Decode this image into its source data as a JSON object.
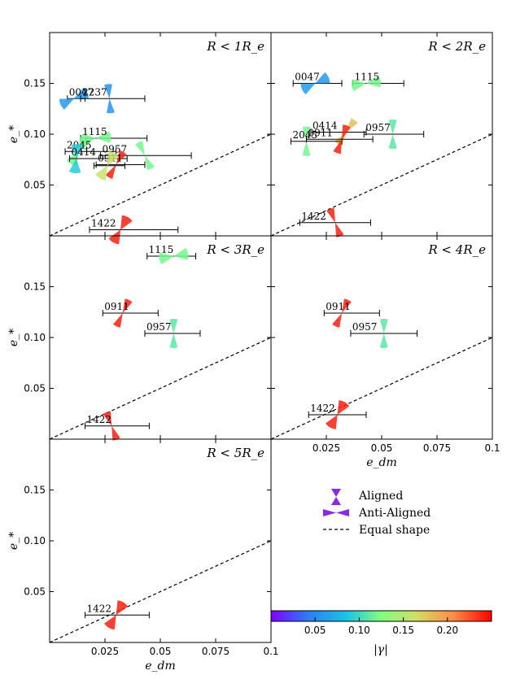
{
  "chart_data": {
    "type": "scatter",
    "description_axes": {
      "xlabel": "e_dm",
      "ylabel": "e_*"
    },
    "xlim": [
      0,
      0.1
    ],
    "ylim": [
      0,
      0.2
    ],
    "xticks": [
      0.025,
      0.05,
      0.075,
      0.1
    ],
    "xtick_labels": [
      "0.025",
      "0.05",
      "0.075",
      "0.1"
    ],
    "yticks": [
      0.05,
      0.1,
      0.15
    ],
    "ytick_labels": [
      "0.05",
      "0.10",
      "0.15"
    ],
    "xlabel": "e_dm",
    "ylabel": "e_*",
    "panels": [
      {
        "title": "R < 1R_e",
        "points": [
          {
            "label": "0047",
            "x": 0.011,
            "y": 0.135,
            "xerr": [
              0.008,
              0.016
            ],
            "gamma": 0.06,
            "angle": 25,
            "type": "anti"
          },
          {
            "label": "2237",
            "x": 0.027,
            "y": 0.135,
            "xerr": [
              0.014,
              0.043
            ],
            "gamma": 0.055,
            "angle": 5,
            "type": "aligned"
          },
          {
            "label": "1115",
            "x": 0.021,
            "y": 0.096,
            "xerr": [
              0.014,
              0.044
            ],
            "gamma": 0.12,
            "angle": 5,
            "type": "anti"
          },
          {
            "label": "2045",
            "x": 0.013,
            "y": 0.083,
            "xerr": [
              0.007,
              0.03
            ],
            "gamma": 0.12,
            "angle": 60,
            "type": "anti"
          },
          {
            "label": "0957",
            "x": 0.043,
            "y": 0.079,
            "xerr": [
              0.023,
              0.064
            ],
            "gamma": 0.12,
            "angle": 25,
            "type": "aligned"
          },
          {
            "label": "0414",
            "x": 0.012,
            "y": 0.076,
            "xerr": [
              0.009,
              0.035
            ],
            "gamma": 0.09,
            "angle": 85,
            "type": "anti"
          },
          {
            "label": "0911",
            "x": 0.03,
            "y": 0.07,
            "xerr": [
              0.021,
              0.043
            ],
            "gamma": 0.24,
            "angle": -30,
            "type": "aligned"
          },
          {
            "label": "0911b",
            "x": 0.026,
            "y": 0.069,
            "xerr": [
              0.02,
              0.034
            ],
            "gamma": 0.16,
            "angle": 60,
            "type": "anti"
          },
          {
            "label": "1422",
            "x": 0.032,
            "y": 0.006,
            "xerr": [
              0.018,
              0.058
            ],
            "gamma": 0.24,
            "angle": 60,
            "type": "anti"
          }
        ]
      },
      {
        "title": "R < 2R_e",
        "points": [
          {
            "label": "0047",
            "x": 0.02,
            "y": 0.15,
            "xerr": [
              0.01,
              0.032
            ],
            "gamma": 0.06,
            "angle": 25,
            "type": "anti"
          },
          {
            "label": "1115",
            "x": 0.043,
            "y": 0.15,
            "xerr": [
              0.037,
              0.06
            ],
            "gamma": 0.12,
            "angle": 8,
            "type": "anti"
          },
          {
            "label": "0414",
            "x": 0.034,
            "y": 0.102,
            "xerr": [
              0.018,
              0.043
            ],
            "gamma": 0.18,
            "angle": -35,
            "type": "aligned"
          },
          {
            "label": "2045",
            "x": 0.016,
            "y": 0.093,
            "xerr": [
              0.009,
              0.032
            ],
            "gamma": 0.12,
            "angle": 0,
            "type": "aligned"
          },
          {
            "label": "0957",
            "x": 0.055,
            "y": 0.1,
            "xerr": [
              0.042,
              0.069
            ],
            "gamma": 0.11,
            "angle": 0,
            "type": "aligned"
          },
          {
            "label": "0911",
            "x": 0.032,
            "y": 0.095,
            "xerr": [
              0.016,
              0.046
            ],
            "gamma": 0.24,
            "angle": -20,
            "type": "aligned"
          },
          {
            "label": "1422",
            "x": 0.029,
            "y": 0.013,
            "xerr": [
              0.013,
              0.045
            ],
            "gamma": 0.24,
            "angle": 20,
            "type": "aligned"
          }
        ]
      },
      {
        "title": "R < 3R_e",
        "points": [
          {
            "label": "1115",
            "x": 0.056,
            "y": 0.18,
            "xerr": [
              0.044,
              0.066
            ],
            "gamma": 0.12,
            "angle": 10,
            "type": "anti"
          },
          {
            "label": "0911",
            "x": 0.033,
            "y": 0.124,
            "xerr": [
              0.024,
              0.049
            ],
            "gamma": 0.24,
            "angle": -25,
            "type": "aligned"
          },
          {
            "label": "0957",
            "x": 0.056,
            "y": 0.104,
            "xerr": [
              0.043,
              0.068
            ],
            "gamma": 0.11,
            "angle": 0,
            "type": "aligned"
          },
          {
            "label": "1422",
            "x": 0.028,
            "y": 0.013,
            "xerr": [
              0.016,
              0.045
            ],
            "gamma": 0.24,
            "angle": 20,
            "type": "aligned"
          }
        ]
      },
      {
        "title": "R < 4R_e",
        "points": [
          {
            "label": "0911",
            "x": 0.032,
            "y": 0.124,
            "xerr": [
              0.024,
              0.049
            ],
            "gamma": 0.24,
            "angle": -25,
            "type": "aligned"
          },
          {
            "label": "0957",
            "x": 0.051,
            "y": 0.104,
            "xerr": [
              0.036,
              0.066
            ],
            "gamma": 0.11,
            "angle": 0,
            "type": "aligned"
          },
          {
            "label": "1422",
            "x": 0.03,
            "y": 0.024,
            "xerr": [
              0.017,
              0.043
            ],
            "gamma": 0.24,
            "angle": 60,
            "type": "anti"
          }
        ]
      },
      {
        "title": "R < 5R_e",
        "points": [
          {
            "label": "1422",
            "x": 0.03,
            "y": 0.027,
            "xerr": [
              0.016,
              0.045
            ],
            "gamma": 0.24,
            "angle": 60,
            "type": "anti"
          }
        ]
      }
    ],
    "legend": {
      "aligned": "Aligned",
      "anti_aligned": "Anti-Aligned",
      "equal_shape": "Equal shape"
    },
    "colorbar": {
      "label": "|γ|",
      "range": [
        0,
        0.25
      ],
      "ticks": [
        0.05,
        0.1,
        0.15,
        0.2
      ],
      "tick_labels": [
        "0.05",
        "0.10",
        "0.15",
        "0.20"
      ]
    }
  },
  "colors": {
    "marker_color": "#8a2be2"
  }
}
